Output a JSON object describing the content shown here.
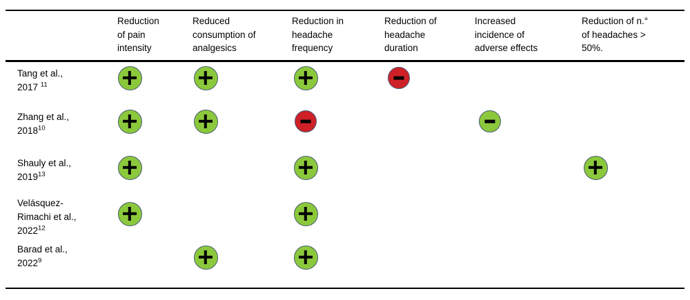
{
  "chart_data": {
    "type": "table",
    "columns": [
      "Reduction of pain intensity",
      "Reduced consumption of analgesics",
      "Reduction in headache frequency",
      "Reduction of headache duration",
      "Increased incidence of adverse effects",
      "Reduction of n.° of headaches > 50%."
    ],
    "rows": [
      {
        "study": "Tang et al., 2017",
        "reference": "11",
        "cells": [
          "green-plus",
          "green-plus",
          "green-plus",
          "red-minus",
          null,
          null
        ]
      },
      {
        "study": "Zhang et al., 2018",
        "reference": "10",
        "cells": [
          "green-plus",
          "green-plus",
          "red-minus",
          null,
          "green-minus",
          null
        ]
      },
      {
        "study": "Shauly et al., 2019",
        "reference": "13",
        "cells": [
          "green-plus",
          null,
          "green-plus",
          null,
          null,
          "green-plus"
        ]
      },
      {
        "study": "Velásquez-Rimachi et al., 2022",
        "reference": "12",
        "cells": [
          "green-plus",
          null,
          "green-plus",
          null,
          null,
          null
        ]
      },
      {
        "study": "Barad et al., 2022",
        "reference": "9",
        "cells": [
          null,
          "green-plus",
          "green-plus",
          null,
          null,
          null
        ]
      }
    ]
  },
  "header": {
    "column_lines": [
      "Reduction\nof pain\nintensity",
      "Reduced\nconsumption of\nanalgesics",
      "Reduction in\nheadache\nfrequency",
      "Reduction of\nheadache\nduration",
      "Increased\nincidence of\nadverse effects",
      "Reduction of n.°\nof headaches >\n50%."
    ]
  },
  "rows_display": [
    {
      "label_lines": "Tang et al.,\n2017 ",
      "superscript": "11"
    },
    {
      "label_lines": "Zhang et al.,\n2018",
      "superscript": "10"
    },
    {
      "label_lines": "Shauly et al.,\n2019",
      "superscript": "13"
    },
    {
      "label_lines": "Velásquez-\nRimachi et al.,\n2022",
      "superscript": "12"
    },
    {
      "label_lines": "Barad et al.,\n2022",
      "superscript": "9"
    }
  ],
  "symbols": {
    "plus": "+",
    "minus": "-"
  },
  "colors": {
    "positive_fill": "#8CC83C",
    "negative_fill": "#CE2127",
    "circle_border": "#465A74",
    "sign_color": "#000000",
    "rule_color": "#000000"
  }
}
